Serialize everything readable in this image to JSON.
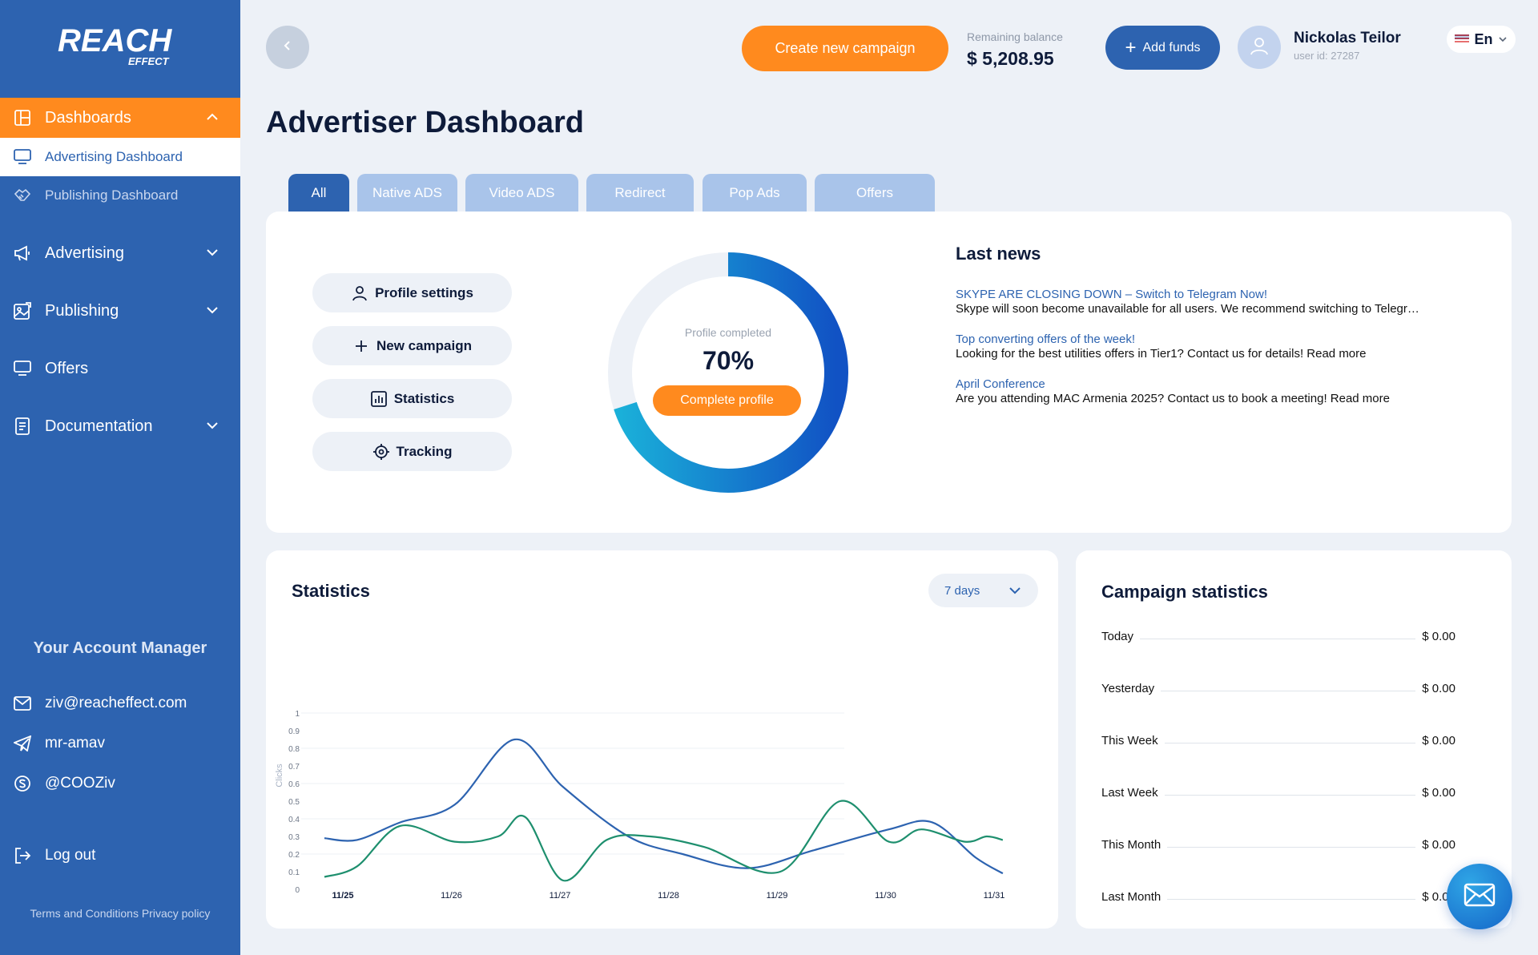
{
  "brand": {
    "logo_text": "REACH",
    "logo_sub": "EFFECT"
  },
  "sidebar": {
    "dashboards_label": "Dashboards",
    "sub_items": [
      {
        "label": "Advertising Dashboard"
      },
      {
        "label": "Publishing Dashboard"
      }
    ],
    "items": [
      {
        "label": "Advertising"
      },
      {
        "label": "Publishing"
      },
      {
        "label": "Offers"
      },
      {
        "label": "Documentation"
      }
    ],
    "account_manager_title": "Your Account Manager",
    "contacts": [
      {
        "label": "ziv@reacheffect.com",
        "icon": "mail-icon"
      },
      {
        "label": "mr-amav",
        "icon": "telegram-icon"
      },
      {
        "label": "@COOZiv",
        "icon": "skype-icon"
      }
    ],
    "logout_label": "Log out",
    "footer": {
      "terms": "Terms and Conditions",
      "privacy": "Privacy policy"
    }
  },
  "header": {
    "create_campaign": "Create new campaign",
    "balance_label": "Remaining balance",
    "balance_value": "$ 5,208.95",
    "add_funds": "Add funds",
    "user_name": "Nickolas Teilor",
    "user_id": "user id: 27287",
    "language": "En"
  },
  "page_title": "Advertiser Dashboard",
  "tabs": [
    {
      "label": "All",
      "active": true
    },
    {
      "label": "Native ADS"
    },
    {
      "label": "Video ADS"
    },
    {
      "label": "Redirect"
    },
    {
      "label": "Pop Ads"
    },
    {
      "label": "Offers"
    }
  ],
  "quick_actions": [
    {
      "label": "Profile settings",
      "icon": "user-icon"
    },
    {
      "label": "New campaign",
      "icon": "plus-icon"
    },
    {
      "label": "Statistics",
      "icon": "chart-icon"
    },
    {
      "label": "Tracking",
      "icon": "target-icon"
    }
  ],
  "profile": {
    "label": "Profile completed",
    "percent": "70%",
    "fraction": 0.7,
    "button": "Complete profile"
  },
  "news": {
    "title": "Last news",
    "items": [
      {
        "headline": "SKYPE ARE CLOSING DOWN – Switch to Telegram Now!",
        "body": "Skype will soon become unavailable for all users. We recommend switching to Telegram to stay in touch."
      },
      {
        "headline": "Top converting offers of the week!",
        "body": "Looking for the best utilities offers in Tier1? Contact us for details! Read more"
      },
      {
        "headline": "April Conference",
        "body": "Are you attending MAC Armenia 2025? Contact us to book a meeting! Read more"
      }
    ]
  },
  "statistics": {
    "title": "Statistics",
    "range": "7 days"
  },
  "chart_data": {
    "type": "line",
    "x": [
      "11/25",
      "11/26",
      "11/27",
      "11/28",
      "11/29",
      "11/30",
      "11/31"
    ],
    "ylabel": "Clicks",
    "ylim": [
      0,
      1
    ],
    "yticks": [
      "0",
      "0.1",
      "0.2",
      "0.3",
      "0.4",
      "0.5",
      "0.6",
      "0.7",
      "0.8",
      "0.9",
      "1"
    ],
    "series": [
      {
        "color": "#2d63b0",
        "points": [
          [
            0,
            0.29
          ],
          [
            0.3,
            0.28
          ],
          [
            0.7,
            0.38
          ],
          [
            1.2,
            0.48
          ],
          [
            1.75,
            0.85
          ],
          [
            2.2,
            0.58
          ],
          [
            2.8,
            0.3
          ],
          [
            3.3,
            0.2
          ],
          [
            3.9,
            0.12
          ],
          [
            4.5,
            0.22
          ],
          [
            5.2,
            0.34
          ],
          [
            5.6,
            0.38
          ],
          [
            6.0,
            0.18
          ],
          [
            6.25,
            0.09
          ]
        ]
      },
      {
        "color": "#1e8f6e",
        "points": [
          [
            0,
            0.07
          ],
          [
            0.3,
            0.13
          ],
          [
            0.7,
            0.36
          ],
          [
            1.2,
            0.27
          ],
          [
            1.6,
            0.3
          ],
          [
            1.85,
            0.41
          ],
          [
            2.2,
            0.05
          ],
          [
            2.6,
            0.28
          ],
          [
            3.0,
            0.3
          ],
          [
            3.5,
            0.24
          ],
          [
            4.2,
            0.1
          ],
          [
            4.75,
            0.5
          ],
          [
            5.2,
            0.27
          ],
          [
            5.5,
            0.34
          ],
          [
            5.9,
            0.27
          ],
          [
            6.1,
            0.3
          ],
          [
            6.25,
            0.28
          ]
        ]
      }
    ]
  },
  "campaign_stats": {
    "title": "Campaign statistics",
    "rows": [
      {
        "label": "Today",
        "value": "$ 0.00"
      },
      {
        "label": "Yesterday",
        "value": "$ 0.00"
      },
      {
        "label": "This Week",
        "value": "$ 0.00"
      },
      {
        "label": "Last Week",
        "value": "$ 0.00"
      },
      {
        "label": "This Month",
        "value": "$ 0.00"
      },
      {
        "label": "Last Month",
        "value": "$ 0.00"
      }
    ]
  },
  "colors": {
    "primary": "#2d63b0",
    "accent": "#ff8a1e",
    "series_1": "#2d63b0",
    "series_2": "#1e8f6e"
  }
}
